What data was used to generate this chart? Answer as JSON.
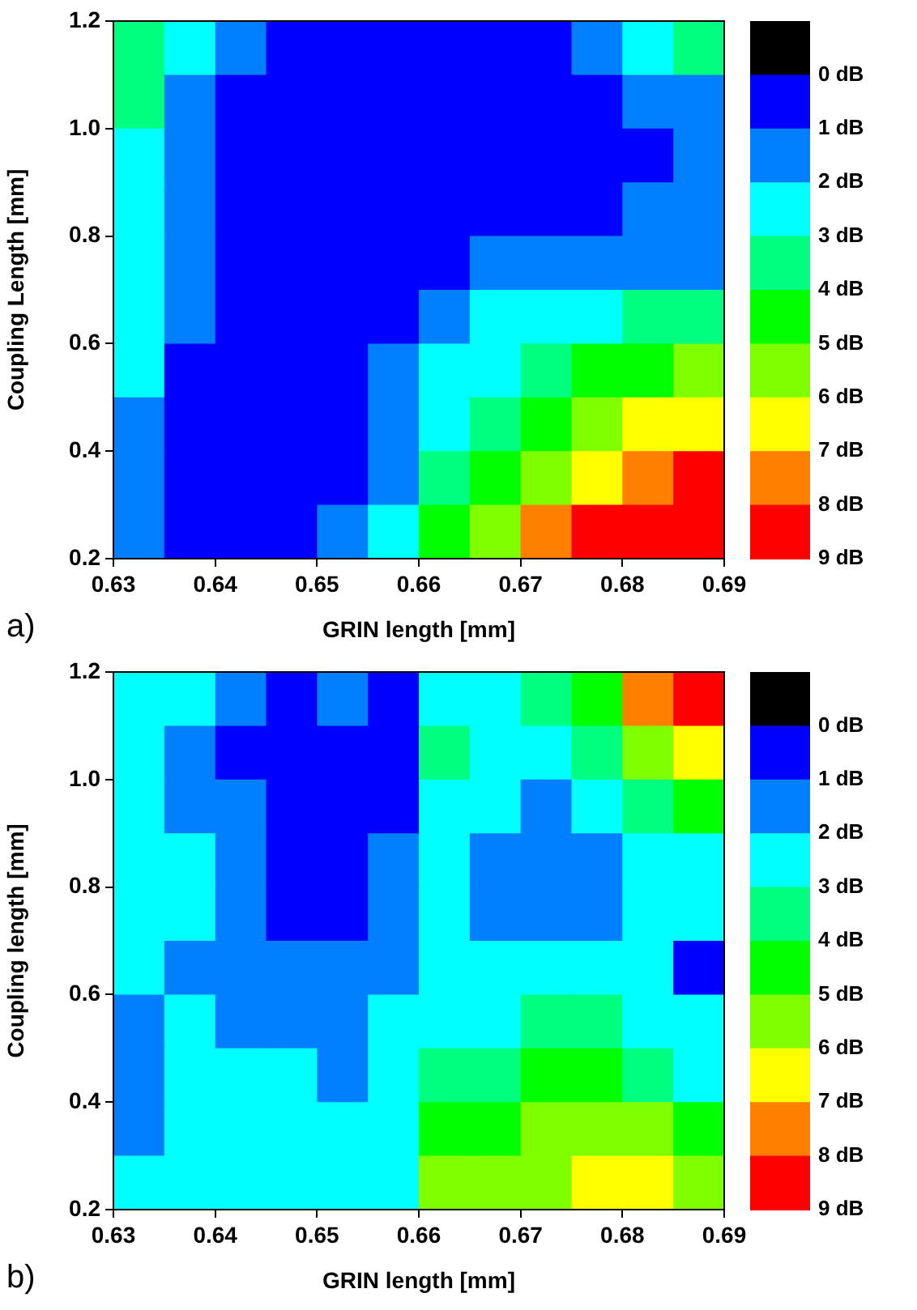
{
  "chart_data": [
    {
      "type": "heatmap",
      "xlabel": "GRIN length [mm]",
      "ylabel": "Coupling Length [mm]",
      "annotations": [
        "a)"
      ],
      "x": [
        0.6325,
        0.6375,
        0.6425,
        0.6475,
        0.6525,
        0.6575,
        0.6625,
        0.6675,
        0.6725,
        0.6775,
        0.6825,
        0.6875
      ],
      "y": [
        1.15,
        1.05,
        0.95,
        0.85,
        0.75,
        0.65,
        0.55,
        0.45,
        0.35,
        0.25
      ],
      "cells": [
        [
          3.5,
          2.5,
          1.5,
          0.5,
          0.5,
          0.5,
          0.5,
          0.5,
          0.5,
          1.5,
          2.5,
          3.5
        ],
        [
          3.5,
          1.5,
          0.5,
          0.5,
          0.5,
          0.5,
          0.5,
          0.5,
          0.5,
          0.5,
          1.5,
          1.5
        ],
        [
          2.5,
          1.5,
          0.5,
          0.5,
          0.5,
          0.5,
          0.5,
          0.5,
          0.5,
          0.5,
          0.5,
          1.5
        ],
        [
          2.5,
          1.5,
          0.5,
          0.5,
          0.5,
          0.5,
          0.5,
          0.5,
          0.5,
          0.5,
          1.5,
          1.5
        ],
        [
          2.5,
          1.5,
          0.5,
          0.5,
          0.5,
          0.5,
          0.5,
          1.5,
          1.5,
          1.5,
          1.5,
          1.5
        ],
        [
          2.5,
          1.5,
          0.5,
          0.5,
          0.5,
          0.5,
          1.5,
          2.5,
          2.5,
          2.5,
          3.5,
          3.5
        ],
        [
          2.5,
          0.5,
          0.5,
          0.5,
          0.5,
          1.5,
          2.5,
          2.5,
          3.5,
          4.5,
          4.5,
          5.5
        ],
        [
          1.5,
          0.5,
          0.5,
          0.5,
          0.5,
          1.5,
          2.5,
          3.5,
          4.5,
          5.5,
          6.5,
          6.5
        ],
        [
          1.5,
          0.5,
          0.5,
          0.5,
          0.5,
          1.5,
          3.5,
          4.5,
          5.5,
          6.5,
          7.5,
          8.5
        ],
        [
          1.5,
          0.5,
          0.5,
          0.5,
          1.5,
          2.5,
          4.5,
          5.5,
          7.5,
          8.5,
          8.5,
          8.5
        ]
      ],
      "colors": [
        "#000000",
        "#0000ff",
        "#0080ff",
        "#00ffff",
        "#00ff80",
        "#00ff00",
        "#80ff00",
        "#ffff00",
        "#ff8000",
        "#ff0000"
      ],
      "clim": [
        -1,
        9
      ],
      "cticks": [
        {
          "value": 0,
          "label": "0 dB"
        },
        {
          "value": 1,
          "label": "1 dB"
        },
        {
          "value": 2,
          "label": "2 dB"
        },
        {
          "value": 3,
          "label": "3 dB"
        },
        {
          "value": 4,
          "label": "4 dB"
        },
        {
          "value": 5,
          "label": "5 dB"
        },
        {
          "value": 6,
          "label": "6 dB"
        },
        {
          "value": 7,
          "label": "7 dB"
        },
        {
          "value": 8,
          "label": "8 dB"
        },
        {
          "value": 9,
          "label": "9 dB"
        }
      ],
      "xlim": [
        0.63,
        0.69
      ],
      "ylim": [
        0.2,
        1.2
      ],
      "xticks": [
        0.63,
        0.64,
        0.65,
        0.66,
        0.67,
        0.68,
        0.69
      ],
      "yticks": [
        0.2,
        0.4,
        0.6,
        0.8,
        {
          "value": 1,
          "label": "1.0"
        },
        1.2
      ]
    },
    {
      "type": "heatmap",
      "xlabel": "GRIN length [mm]",
      "ylabel": "Coupling length [mm]",
      "annotations": [
        "b)"
      ],
      "x": [
        0.6325,
        0.6375,
        0.6425,
        0.6475,
        0.6525,
        0.6575,
        0.6625,
        0.6675,
        0.6725,
        0.6775,
        0.6825,
        0.6875
      ],
      "y": [
        1.15,
        1.05,
        0.95,
        0.85,
        0.75,
        0.65,
        0.55,
        0.45,
        0.35,
        0.25
      ],
      "cells": [
        [
          2.5,
          2.5,
          1.5,
          0.5,
          1.5,
          0.5,
          2.5,
          2.5,
          3.5,
          4.5,
          7.5,
          8.5
        ],
        [
          2.5,
          1.5,
          0.5,
          0.5,
          0.5,
          0.5,
          3.5,
          2.5,
          2.5,
          3.5,
          5.5,
          6.5
        ],
        [
          2.5,
          1.5,
          1.5,
          0.5,
          0.5,
          0.5,
          2.5,
          2.5,
          1.5,
          2.5,
          3.5,
          4.5
        ],
        [
          2.5,
          2.5,
          1.5,
          0.5,
          0.5,
          1.5,
          2.5,
          1.5,
          1.5,
          1.5,
          2.5,
          2.5
        ],
        [
          2.5,
          2.5,
          1.5,
          0.5,
          0.5,
          1.5,
          2.5,
          1.5,
          1.5,
          1.5,
          2.5,
          2.5
        ],
        [
          2.5,
          1.5,
          1.5,
          1.5,
          1.5,
          1.5,
          2.5,
          2.5,
          2.5,
          2.5,
          2.5,
          0.5
        ],
        [
          1.5,
          2.5,
          1.5,
          1.5,
          1.5,
          2.5,
          2.5,
          2.5,
          3.5,
          3.5,
          2.5,
          2.5
        ],
        [
          1.5,
          2.5,
          2.5,
          2.5,
          1.5,
          2.5,
          3.5,
          3.5,
          4.5,
          4.5,
          3.5,
          2.5
        ],
        [
          1.5,
          2.5,
          2.5,
          2.5,
          2.5,
          2.5,
          4.5,
          4.5,
          5.5,
          5.5,
          5.5,
          4.5
        ],
        [
          2.5,
          2.5,
          2.5,
          2.5,
          2.5,
          2.5,
          5.5,
          5.5,
          5.5,
          6.5,
          6.5,
          5.5
        ]
      ],
      "colors": [
        "#000000",
        "#0000ff",
        "#0080ff",
        "#00ffff",
        "#00ff80",
        "#00ff00",
        "#80ff00",
        "#ffff00",
        "#ff8000",
        "#ff0000"
      ],
      "clim": [
        -1,
        9
      ],
      "cticks": [
        {
          "value": 0,
          "label": "0 dB"
        },
        {
          "value": 1,
          "label": "1 dB"
        },
        {
          "value": 2,
          "label": "2 dB"
        },
        {
          "value": 3,
          "label": "3 dB"
        },
        {
          "value": 4,
          "label": "4 dB"
        },
        {
          "value": 5,
          "label": "5 dB"
        },
        {
          "value": 6,
          "label": "6 dB"
        },
        {
          "value": 7,
          "label": "7 dB"
        },
        {
          "value": 8,
          "label": "8 dB"
        },
        {
          "value": 9,
          "label": "9 dB"
        }
      ],
      "xlim": [
        0.63,
        0.69
      ],
      "ylim": [
        0.2,
        1.2
      ],
      "xticks": [
        0.63,
        0.64,
        0.65,
        0.66,
        0.67,
        0.68,
        0.69
      ],
      "yticks": [
        0.2,
        0.4,
        0.6,
        0.8,
        {
          "value": 1,
          "label": "1.0"
        },
        1.2
      ]
    }
  ]
}
